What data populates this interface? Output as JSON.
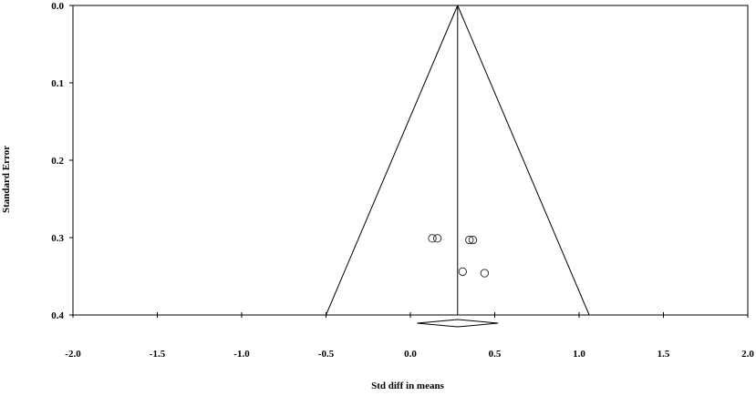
{
  "chart_data": {
    "type": "scatter",
    "subtype": "funnel-plot",
    "title": "",
    "xlabel": "Std diff in means",
    "ylabel": "Standard Error",
    "xlim": [
      -2.0,
      2.0
    ],
    "ylim": [
      0.0,
      0.4
    ],
    "y_inverted": true,
    "x_ticks": [
      "-2.0",
      "-1.5",
      "-1.0",
      "-0.5",
      "0.0",
      "0.5",
      "1.0",
      "1.5",
      "2.0"
    ],
    "y_ticks": [
      "0.0",
      "0.1",
      "0.2",
      "0.3",
      "0.4"
    ],
    "pooled_estimate": 0.28,
    "funnel_bounds_at_max_se": [
      -0.5,
      1.06
    ],
    "summary_diamond": {
      "estimate": 0.28,
      "ci": [
        0.04,
        0.52
      ]
    },
    "points": [
      {
        "x": 0.13,
        "y": 0.301
      },
      {
        "x": 0.16,
        "y": 0.301
      },
      {
        "x": 0.35,
        "y": 0.303
      },
      {
        "x": 0.37,
        "y": 0.303
      },
      {
        "x": 0.31,
        "y": 0.344
      },
      {
        "x": 0.44,
        "y": 0.346
      }
    ],
    "grid": false,
    "legend": "none",
    "colors": {
      "line": "#000000",
      "marker_stroke": "#333333",
      "background": "#ffffff"
    }
  }
}
